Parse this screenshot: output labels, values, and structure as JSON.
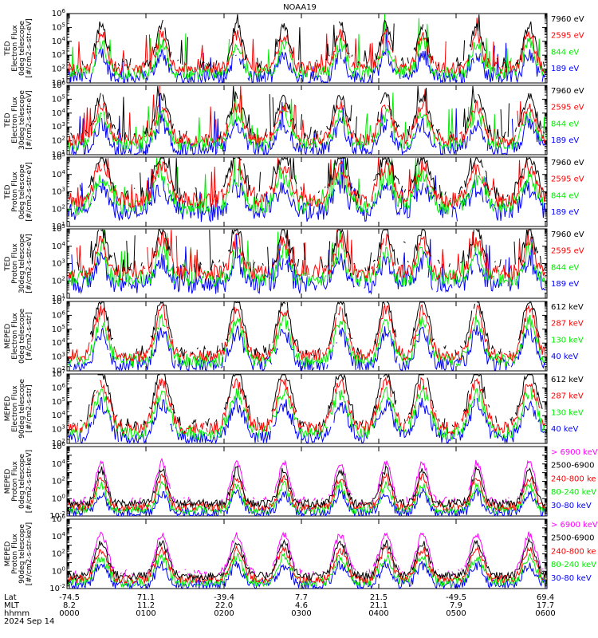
{
  "title": "NOAA19",
  "date_label": "2024 Sep 14",
  "colors": {
    "black": "#000000",
    "red": "#ff0000",
    "green": "#00ee00",
    "blue": "#0000ff",
    "magenta": "#ff00ff"
  },
  "xaxis": {
    "row_labels": [
      "Lat",
      "MLT",
      "hhmm"
    ],
    "ticks": [
      {
        "lat": "-74.5",
        "mlt": "8.2",
        "hhmm": "0000"
      },
      {
        "lat": "71.1",
        "mlt": "11.2",
        "hhmm": "0100"
      },
      {
        "lat": "-39.4",
        "mlt": "22.0",
        "hhmm": "0200"
      },
      {
        "lat": "7.7",
        "mlt": "4.6",
        "hhmm": "0300"
      },
      {
        "lat": "21.5",
        "mlt": "21.1",
        "hhmm": "0400"
      },
      {
        "lat": "-49.5",
        "mlt": "7.9",
        "hhmm": "0500"
      },
      {
        "lat": "69.4",
        "mlt": "17.7",
        "hhmm": "0600"
      }
    ]
  },
  "chart_data": [
    {
      "type": "line",
      "ylabel": [
        "TED",
        "Electron Flux",
        "0deg telescope",
        "[#/cm2-s-str-eV]"
      ],
      "ylog": [
        1,
        6
      ],
      "series": [
        {
          "name": "7960 eV",
          "color": "black"
        },
        {
          "name": "2595 eV",
          "color": "red"
        },
        {
          "name": "844 eV",
          "color": "green"
        },
        {
          "name": "189 eV",
          "color": "blue"
        }
      ]
    },
    {
      "type": "line",
      "ylabel": [
        "TED",
        "Electron Flux",
        "30deg telescope",
        "[#/cm2-s-str-eV]"
      ],
      "ylog": [
        1,
        6
      ],
      "series": [
        {
          "name": "7960 eV",
          "color": "black"
        },
        {
          "name": "2595 eV",
          "color": "red"
        },
        {
          "name": "844 eV",
          "color": "green"
        },
        {
          "name": "189 eV",
          "color": "blue"
        }
      ]
    },
    {
      "type": "line",
      "ylabel": [
        "TED",
        "Proton Flux",
        "0deg telescope",
        "[#/cm2-s-str-eV]"
      ],
      "ylog": [
        1,
        5
      ],
      "series": [
        {
          "name": "7960 eV",
          "color": "black"
        },
        {
          "name": "2595 eV",
          "color": "red"
        },
        {
          "name": "844 eV",
          "color": "green"
        },
        {
          "name": "189 eV",
          "color": "blue"
        }
      ]
    },
    {
      "type": "line",
      "ylabel": [
        "TED",
        "Proton Flux",
        "30deg telescope",
        "[#/cm2-s-str-eV]"
      ],
      "ylog": [
        1,
        5
      ],
      "series": [
        {
          "name": "7960 eV",
          "color": "black"
        },
        {
          "name": "2595 eV",
          "color": "red"
        },
        {
          "name": "844 eV",
          "color": "green"
        },
        {
          "name": "189 eV",
          "color": "blue"
        }
      ]
    },
    {
      "type": "line",
      "ylabel": [
        "MEPED",
        "Electron Flux",
        "0deg telescope",
        "[#/cm2-s-str]"
      ],
      "ylog": [
        2,
        7
      ],
      "series": [
        {
          "name": "612 keV",
          "color": "black"
        },
        {
          "name": "287 keV",
          "color": "red"
        },
        {
          "name": "130 keV",
          "color": "green"
        },
        {
          "name": "40 keV",
          "color": "blue"
        }
      ]
    },
    {
      "type": "line",
      "ylabel": [
        "MEPED",
        "Electron Flux",
        "90deg telescope",
        "[#/cm2-s-str]"
      ],
      "ylog": [
        2,
        7
      ],
      "series": [
        {
          "name": "612 keV",
          "color": "black"
        },
        {
          "name": "287 keV",
          "color": "red"
        },
        {
          "name": "130 keV",
          "color": "green"
        },
        {
          "name": "40 keV",
          "color": "blue"
        }
      ]
    },
    {
      "type": "line",
      "ylabel": [
        "MEPED",
        "Proton Flux",
        "0deg telescope",
        "[#/cm2-s-str-keV]"
      ],
      "ylog": [
        -2,
        6
      ],
      "series": [
        {
          "name": "> 6900 keV",
          "color": "magenta"
        },
        {
          "name": "2500-6900",
          "color": "black"
        },
        {
          "name": "240-800 ke",
          "color": "red"
        },
        {
          "name": "80-240 keV",
          "color": "green"
        },
        {
          "name": "30-80 keV",
          "color": "blue"
        }
      ]
    },
    {
      "type": "line",
      "ylabel": [
        "MEPED",
        "Proton Flux",
        "90deg telescope",
        "[#/cm2-s-str-keV]"
      ],
      "ylog": [
        -2,
        6
      ],
      "series": [
        {
          "name": "> 6900 keV",
          "color": "magenta"
        },
        {
          "name": "2500-6900",
          "color": "black"
        },
        {
          "name": "240-800 ke",
          "color": "red"
        },
        {
          "name": "80-240 keV",
          "color": "green"
        },
        {
          "name": "30-80 keV",
          "color": "blue"
        }
      ]
    }
  ]
}
